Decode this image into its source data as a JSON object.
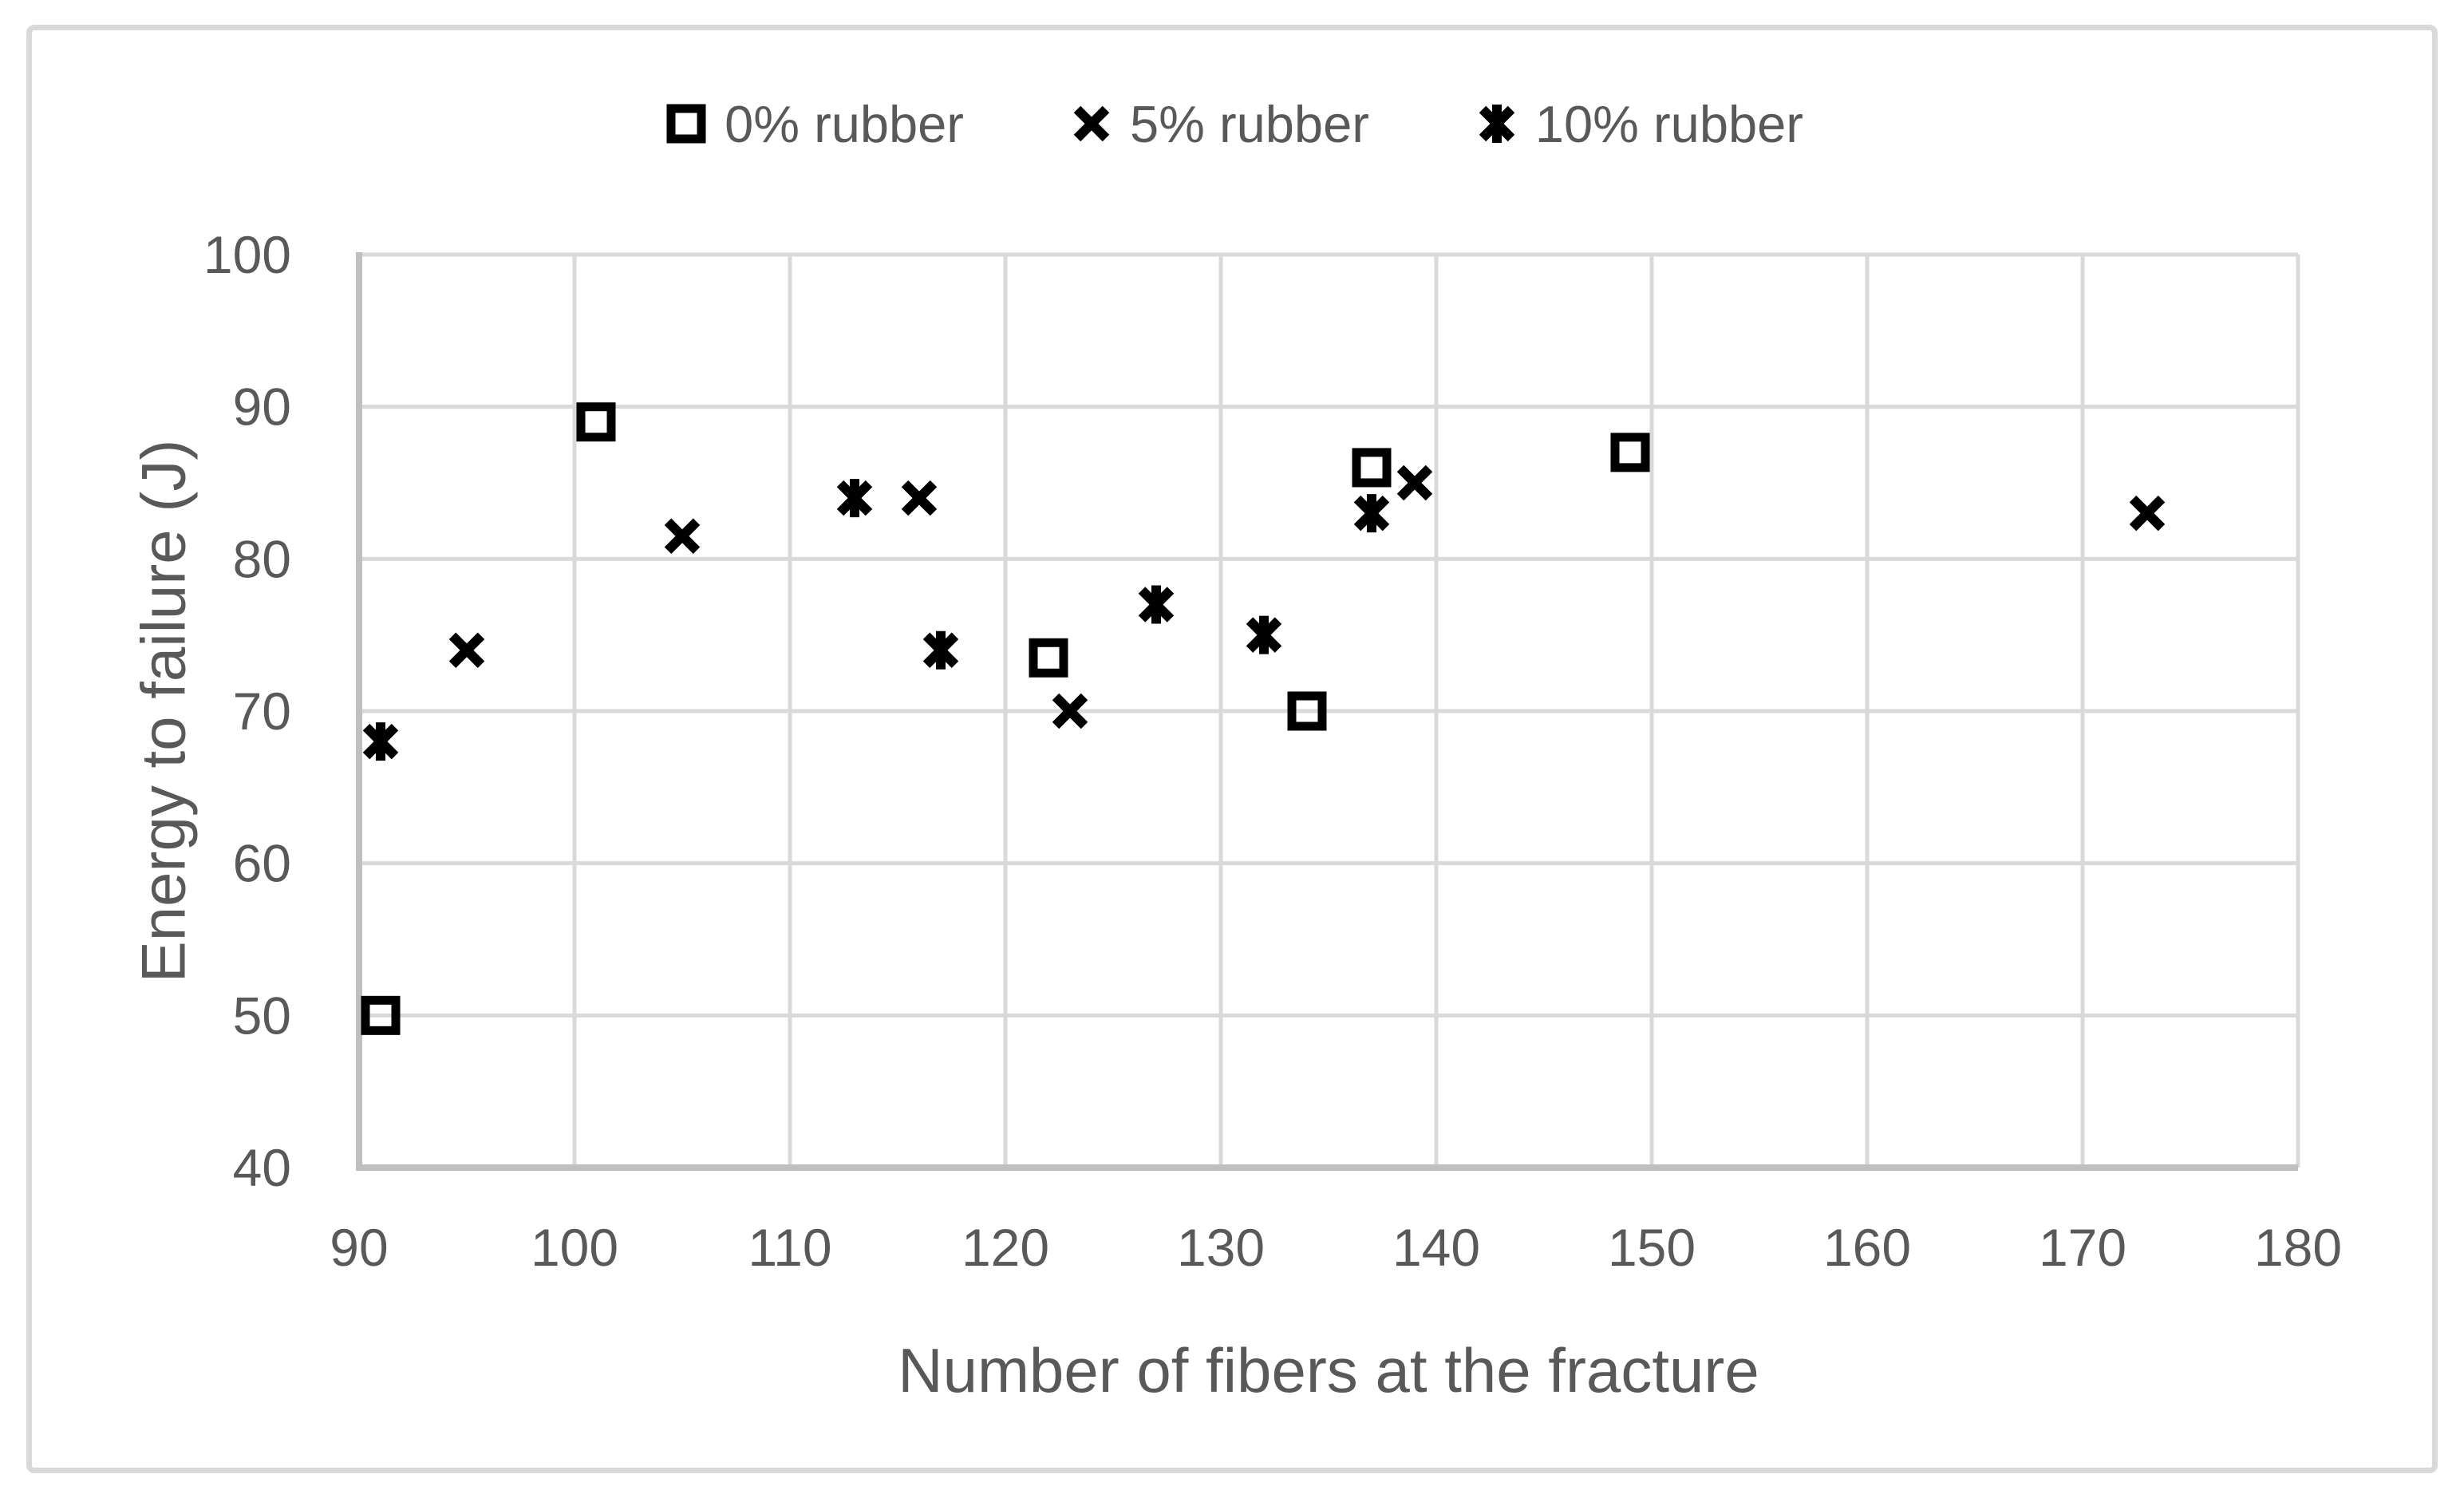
{
  "figure": {
    "background_color": "#ffffff",
    "frame_border_color": "#d9d9d9",
    "text_color": "#595959",
    "gridline_color": "#d9d9d9",
    "axis_line_color": "#bfbfbf",
    "marker_color": "#000000"
  },
  "chart_data": {
    "type": "scatter",
    "title": "",
    "xlabel": "Number of fibers at the fracture",
    "ylabel": "Energy to failure (J)",
    "xlim": [
      90,
      180
    ],
    "ylim": [
      40,
      100
    ],
    "xticks": [
      90,
      100,
      110,
      120,
      130,
      140,
      150,
      160,
      170,
      180
    ],
    "yticks": [
      40,
      50,
      60,
      70,
      80,
      90,
      100
    ],
    "grid": true,
    "legend_position": "top-center",
    "series": [
      {
        "name": "0% rubber",
        "marker": "square",
        "points": [
          [
            91,
            50
          ],
          [
            101,
            89
          ],
          [
            122,
            73.5
          ],
          [
            134,
            70
          ],
          [
            137,
            86
          ],
          [
            149,
            87
          ]
        ]
      },
      {
        "name": "5% rubber",
        "marker": "x",
        "points": [
          [
            95,
            74
          ],
          [
            105,
            81.5
          ],
          [
            116,
            84
          ],
          [
            123,
            70
          ],
          [
            139,
            85
          ],
          [
            173,
            83
          ]
        ]
      },
      {
        "name": "10% rubber",
        "marker": "star",
        "points": [
          [
            91,
            68
          ],
          [
            113,
            84
          ],
          [
            117,
            74
          ],
          [
            127,
            77
          ],
          [
            132,
            75
          ],
          [
            137,
            83
          ]
        ]
      }
    ]
  }
}
